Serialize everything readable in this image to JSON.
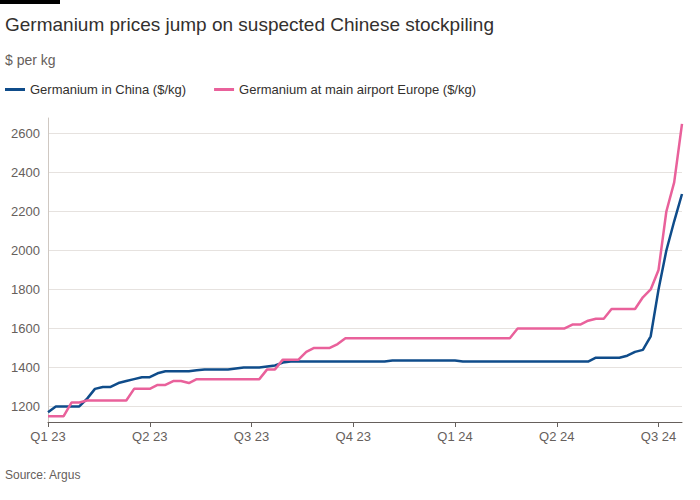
{
  "chart_data": {
    "type": "line",
    "title": "Germanium prices jump on suspected Chinese stockpiling",
    "subtitle": "$ per kg",
    "source": "Source: Argus",
    "categories": [
      "Q1 23",
      null,
      null,
      null,
      null,
      null,
      null,
      null,
      null,
      null,
      null,
      null,
      null,
      "Q2 23",
      null,
      null,
      null,
      null,
      null,
      null,
      null,
      null,
      null,
      null,
      null,
      null,
      "Q3 23",
      null,
      null,
      null,
      null,
      null,
      null,
      null,
      null,
      null,
      null,
      null,
      null,
      "Q4 23",
      null,
      null,
      null,
      null,
      null,
      null,
      null,
      null,
      null,
      null,
      null,
      null,
      "Q1 24",
      null,
      null,
      null,
      null,
      null,
      null,
      null,
      null,
      null,
      null,
      null,
      null,
      "Q2 24",
      null,
      null,
      null,
      null,
      null,
      null,
      null,
      null,
      null,
      null,
      null,
      null,
      "Q3 24",
      null,
      null,
      null
    ],
    "series": [
      {
        "name": "Germanium in China ($/kg)",
        "color": "#0f4c8a",
        "values": [
          1170,
          1200,
          1200,
          1200,
          1200,
          1240,
          1290,
          1300,
          1300,
          1320,
          1330,
          1340,
          1350,
          1350,
          1370,
          1380,
          1380,
          1380,
          1380,
          1385,
          1390,
          1390,
          1390,
          1390,
          1395,
          1400,
          1400,
          1400,
          1405,
          1410,
          1425,
          1430,
          1430,
          1430,
          1430,
          1430,
          1430,
          1430,
          1430,
          1430,
          1430,
          1430,
          1430,
          1430,
          1435,
          1435,
          1435,
          1435,
          1435,
          1435,
          1435,
          1435,
          1435,
          1430,
          1430,
          1430,
          1430,
          1430,
          1430,
          1430,
          1430,
          1430,
          1430,
          1430,
          1430,
          1430,
          1430,
          1430,
          1430,
          1430,
          1450,
          1450,
          1450,
          1450,
          1460,
          1480,
          1490,
          1560,
          1800,
          2000,
          2150,
          2290
        ]
      },
      {
        "name": "Germanium at main airport Europe ($/kg)",
        "color": "#e9619b",
        "values": [
          1150,
          1150,
          1150,
          1220,
          1220,
          1230,
          1230,
          1230,
          1230,
          1230,
          1230,
          1290,
          1290,
          1290,
          1310,
          1310,
          1330,
          1330,
          1320,
          1340,
          1340,
          1340,
          1340,
          1340,
          1340,
          1340,
          1340,
          1340,
          1390,
          1390,
          1440,
          1440,
          1440,
          1480,
          1500,
          1500,
          1500,
          1520,
          1550,
          1550,
          1550,
          1550,
          1550,
          1550,
          1550,
          1550,
          1550,
          1550,
          1550,
          1550,
          1550,
          1550,
          1550,
          1550,
          1550,
          1550,
          1550,
          1550,
          1550,
          1550,
          1600,
          1600,
          1600,
          1600,
          1600,
          1600,
          1600,
          1620,
          1620,
          1640,
          1650,
          1650,
          1700,
          1700,
          1700,
          1700,
          1760,
          1800,
          1900,
          2200,
          2350,
          2650
        ]
      }
    ],
    "ylim": [
      1120,
      2680
    ],
    "yticks": [
      1200,
      1400,
      1600,
      1800,
      2000,
      2200,
      2400,
      2600
    ],
    "grid": true,
    "legend": "top-left"
  }
}
